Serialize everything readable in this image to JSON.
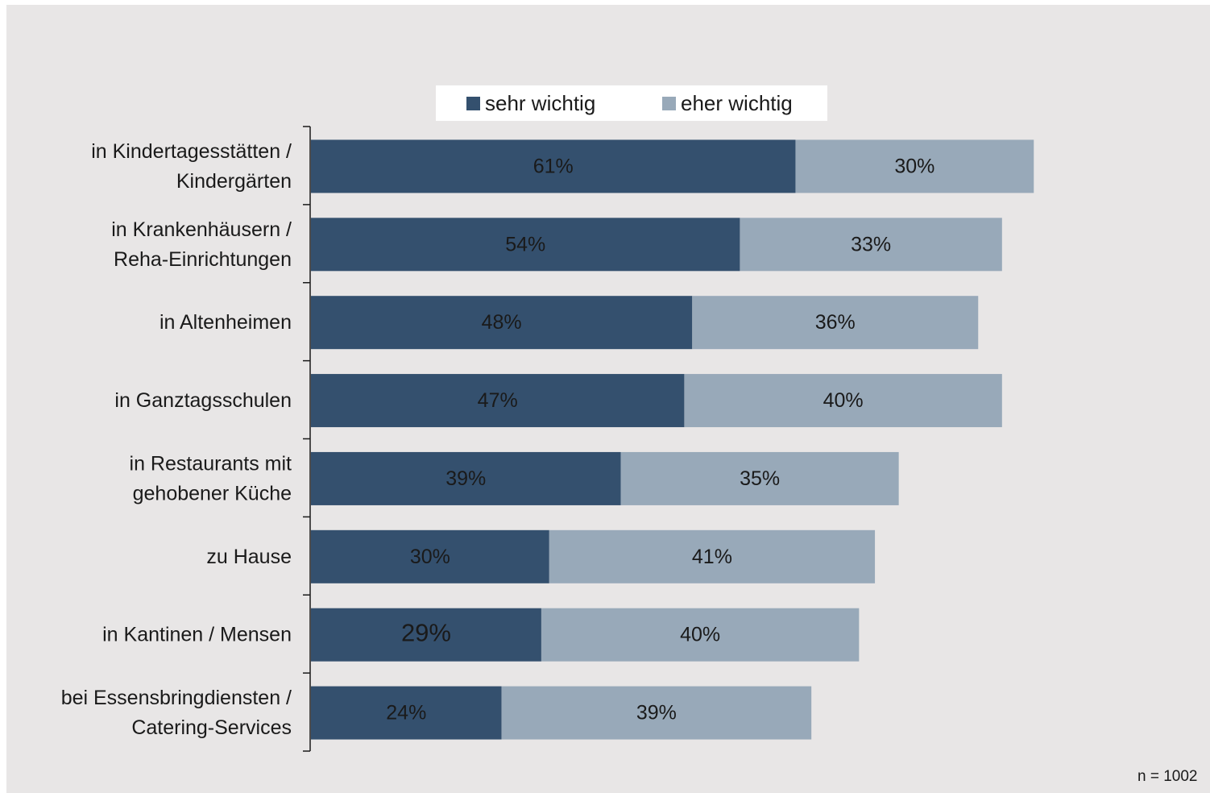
{
  "chart_data": {
    "type": "bar",
    "orientation": "horizontal",
    "stacked": true,
    "categories": [
      [
        "in Kindertagesstätten /",
        "Kindergärten"
      ],
      [
        "in Krankenhäusern /",
        "Reha-Einrichtungen"
      ],
      [
        "in Altenheimen"
      ],
      [
        "in Ganztagsschulen"
      ],
      [
        "in Restaurants mit",
        "gehobener Küche"
      ],
      [
        "zu Hause"
      ],
      [
        "in Kantinen / Mensen"
      ],
      [
        "bei Essensbringdiensten /",
        "Catering-Services"
      ]
    ],
    "series": [
      {
        "name": "sehr wichtig",
        "values": [
          61,
          54,
          48,
          47,
          39,
          30,
          29,
          24
        ],
        "color": "#34506e"
      },
      {
        "name": "eher wichtig",
        "values": [
          30,
          33,
          36,
          40,
          35,
          41,
          40,
          39
        ],
        "color": "#98a9b9"
      }
    ],
    "value_suffix": "%",
    "xlim": [
      0,
      100
    ],
    "grid": false,
    "legend": "top-center",
    "note": "n = 1002"
  }
}
